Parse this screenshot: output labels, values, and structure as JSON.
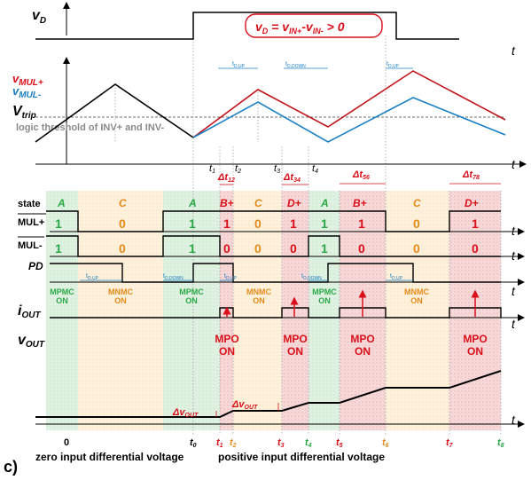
{
  "vd": {
    "label_base": "v",
    "label_sub": "D",
    "formula": {
      "a": "v",
      "a_sub": "D",
      "b": " = v",
      "b_sub": "IN+",
      "c": "-v",
      "c_sub": "IN-",
      "d": " > 0"
    }
  },
  "mul": {
    "plus_label": "v",
    "plus_sub": "MUL+",
    "minus_label": "v",
    "minus_sub": "MUL-",
    "vtrip": "V",
    "vtrip_sub": "trip",
    "logic_threshold": "logic threshold of INV+ and INV-",
    "delays": [
      {
        "t": "t",
        "sub": "D,UP"
      },
      {
        "t": "t",
        "sub": "D,DOWN"
      },
      {
        "t": "t",
        "sub": "D,UP"
      }
    ],
    "time_marks": [
      {
        "t": "t",
        "sub": "1"
      },
      {
        "t": "t",
        "sub": "2"
      },
      {
        "t": "t",
        "sub": "3"
      },
      {
        "t": "t",
        "sub": "4"
      }
    ],
    "deltas": [
      {
        "t": "Δt",
        "sub": "12"
      },
      {
        "t": "Δt",
        "sub": "34"
      },
      {
        "t": "Δt",
        "sub": "56"
      },
      {
        "t": "Δt",
        "sub": "78"
      }
    ]
  },
  "axis_t": "t",
  "state_row": {
    "label": "state",
    "values": [
      "A",
      "C",
      "A",
      "B+",
      "C",
      "D+",
      "A",
      "B+",
      "C",
      "D+"
    ]
  },
  "mulp_row": {
    "label": "MUL+",
    "values": [
      "1",
      "0",
      "1",
      "1",
      "0",
      "1",
      "1",
      "1",
      "0",
      "1"
    ]
  },
  "mulm_row": {
    "label": "MUL-",
    "values": [
      "1",
      "0",
      "1",
      "0",
      "0",
      "0",
      "1",
      "0",
      "0",
      "0"
    ]
  },
  "pd_row": {
    "label": "PD",
    "delays": [
      {
        "t": "t",
        "sub": "D,UP"
      },
      {
        "t": "t",
        "sub": "D,DOWN"
      },
      {
        "t": "t",
        "sub": "D,UP"
      },
      {
        "t": "t",
        "sub": "D,DOWN"
      },
      {
        "t": "t",
        "sub": "D,UP"
      }
    ],
    "mpmc": "MPMC",
    "mnmc": "MNMC",
    "on": "ON"
  },
  "iout": {
    "label": "i",
    "sub": "OUT"
  },
  "vout": {
    "label": "v",
    "sub": "OUT",
    "mpo": "MPO",
    "on": "ON",
    "dv": "Δv",
    "dv_sub": "OUT"
  },
  "bottom": {
    "zero": "0",
    "t0": "t",
    "t0_sub": "0",
    "marks": [
      {
        "t": "t",
        "sub": "1"
      },
      {
        "t": "t",
        "sub": "2"
      },
      {
        "t": "t",
        "sub": "3"
      },
      {
        "t": "t",
        "sub": "4"
      },
      {
        "t": "t",
        "sub": "5"
      },
      {
        "t": "t",
        "sub": "6"
      },
      {
        "t": "t",
        "sub": "7"
      },
      {
        "t": "t",
        "sub": "8"
      }
    ],
    "zero_caption": "zero input differential voltage",
    "pos_caption": "positive input differential voltage",
    "panel": "c)"
  },
  "colors": {
    "red": "#d90f1a",
    "blue": "#1a7fc4",
    "green": "#2aa846",
    "orange": "#e38b1a",
    "bg_green": "#dff1e1",
    "bg_orange": "#fdf1dc",
    "bg_pink": "#f6d8d8"
  }
}
